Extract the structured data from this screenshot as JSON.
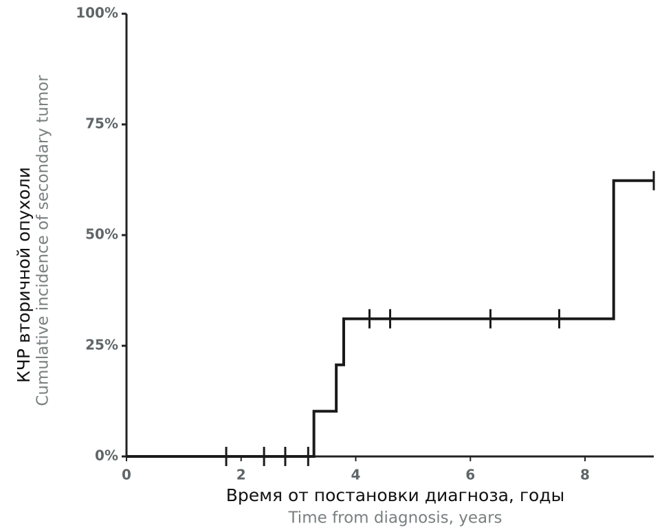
{
  "chart_data": {
    "type": "step",
    "ylabel": "КЧР вторичной опухоли",
    "ylabel_en": "Cumulative incidence of secondary tumor",
    "xlabel": "Время от постановки диагноза, годы",
    "xlabel_en": "Time from diagnosis, years",
    "x": [
      0,
      3.27,
      3.66,
      3.79,
      8.5,
      9.2
    ],
    "values": [
      0,
      10.2,
      20.7,
      31.1,
      62.3,
      62.3
    ],
    "color": "#1a1a1a",
    "censor": {
      "x": [
        1.74,
        2.4,
        2.77,
        3.17,
        4.24,
        4.6,
        6.35,
        7.55,
        9.2
      ],
      "values": [
        0,
        0,
        0,
        0,
        31.1,
        31.1,
        31.1,
        31.1,
        62.3
      ]
    },
    "xlim": [
      0,
      9.2
    ],
    "ylim": [
      0,
      100
    ],
    "xticks": [
      0,
      2,
      4,
      6,
      8
    ],
    "yticks": [
      {
        "value": 0,
        "label": "0%"
      },
      {
        "value": 25,
        "label": "25%"
      },
      {
        "value": 50,
        "label": "50%"
      },
      {
        "value": 75,
        "label": "75%"
      },
      {
        "value": 100,
        "label": "100%"
      }
    ],
    "grid": false
  }
}
